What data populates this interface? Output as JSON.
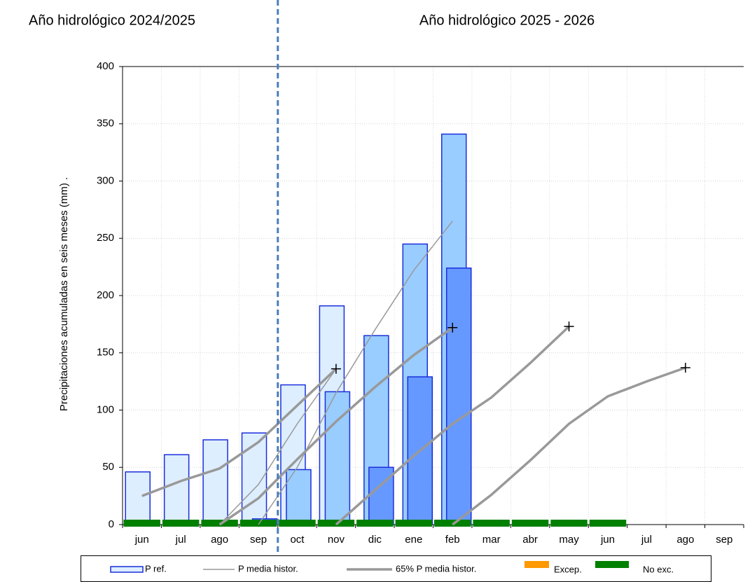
{
  "chart_data": {
    "type": "bar",
    "year_groups": [
      {
        "title": "Año hidrológico 2024/2025",
        "categories": [
          "jun",
          "jul",
          "ago",
          "sep"
        ]
      },
      {
        "title": "Año hidrológico 2025 - 2026",
        "categories": [
          "oct",
          "nov",
          "dic",
          "ene",
          "feb",
          "mar",
          "abr",
          "may",
          "jun",
          "jul",
          "ago",
          "sep"
        ]
      }
    ],
    "y_label": "Precipitaciones acumuladas en seis meses (mm)  .",
    "ylim": [
      0,
      400
    ],
    "yticks": [
      0,
      50,
      100,
      150,
      200,
      250,
      300,
      350,
      400
    ],
    "grid": true,
    "divider_color": "#4a7ebb",
    "bars": {
      "name": "P ref.",
      "stroke": "#1a2fdc",
      "series": [
        {
          "color": "#ddeeff",
          "values": [
            46,
            61,
            74,
            80,
            122,
            191,
            null,
            null,
            null,
            null,
            null,
            null,
            null,
            null,
            null,
            null
          ]
        },
        {
          "color": "#99ccff",
          "values": [
            null,
            null,
            null,
            null,
            48,
            116,
            165,
            245,
            341,
            null,
            null,
            null,
            null,
            null,
            null,
            null
          ]
        },
        {
          "color": "#6699ff",
          "values": [
            null,
            null,
            null,
            5,
            null,
            null,
            50,
            129,
            224,
            null,
            null,
            null,
            null,
            null,
            null,
            null
          ]
        }
      ]
    },
    "lines": [
      {
        "name": "P media histor.",
        "color": "#999999",
        "width": 1.5,
        "segments": [
          {
            "x": [
              "ago",
              "sep",
              "oct",
              "nov"
            ],
            "y": [
              0,
              35,
              88,
              136
            ]
          },
          {
            "x": [
              "sep",
              "oct",
              "nov",
              "dic",
              "ene",
              "feb"
            ],
            "y": [
              0,
              50,
              115,
              170,
              222,
              265
            ]
          }
        ]
      },
      {
        "name": "65%  P media histor.",
        "color": "#999999",
        "width": 3.5,
        "segments": [
          {
            "x": [
              "jun",
              "jul",
              "ago",
              "sep",
              "oct",
              "nov"
            ],
            "y": [
              25,
              38,
              49,
              72,
              104,
              136
            ],
            "end_marker": true
          },
          {
            "x": [
              "ago",
              "sep",
              "oct",
              "nov",
              "dic",
              "ene",
              "feb"
            ],
            "y": [
              0,
              23,
              57,
              90,
              120,
              148,
              172
            ],
            "end_marker": true
          },
          {
            "x": [
              "nov",
              "dic",
              "ene",
              "feb",
              "mar",
              "abr",
              "may"
            ],
            "y": [
              0,
              30,
              60,
              88,
              111,
              141,
              173
            ],
            "end_marker": true
          },
          {
            "x": [
              "feb",
              "mar",
              "abr",
              "may",
              "jun",
              "jul",
              "ago"
            ],
            "y": [
              0,
              26,
              56,
              88,
              112,
              125,
              137
            ],
            "end_marker": true
          }
        ]
      }
    ],
    "status_legend": [
      {
        "name": "Excep.",
        "color": "#ff9900",
        "exceeded": true
      },
      {
        "name": "No exc.",
        "color": "#008000",
        "exceeded": false
      }
    ],
    "status": [
      false,
      false,
      false,
      false,
      false,
      false,
      false,
      false,
      false,
      false,
      false,
      false,
      false,
      null,
      null,
      null
    ]
  }
}
